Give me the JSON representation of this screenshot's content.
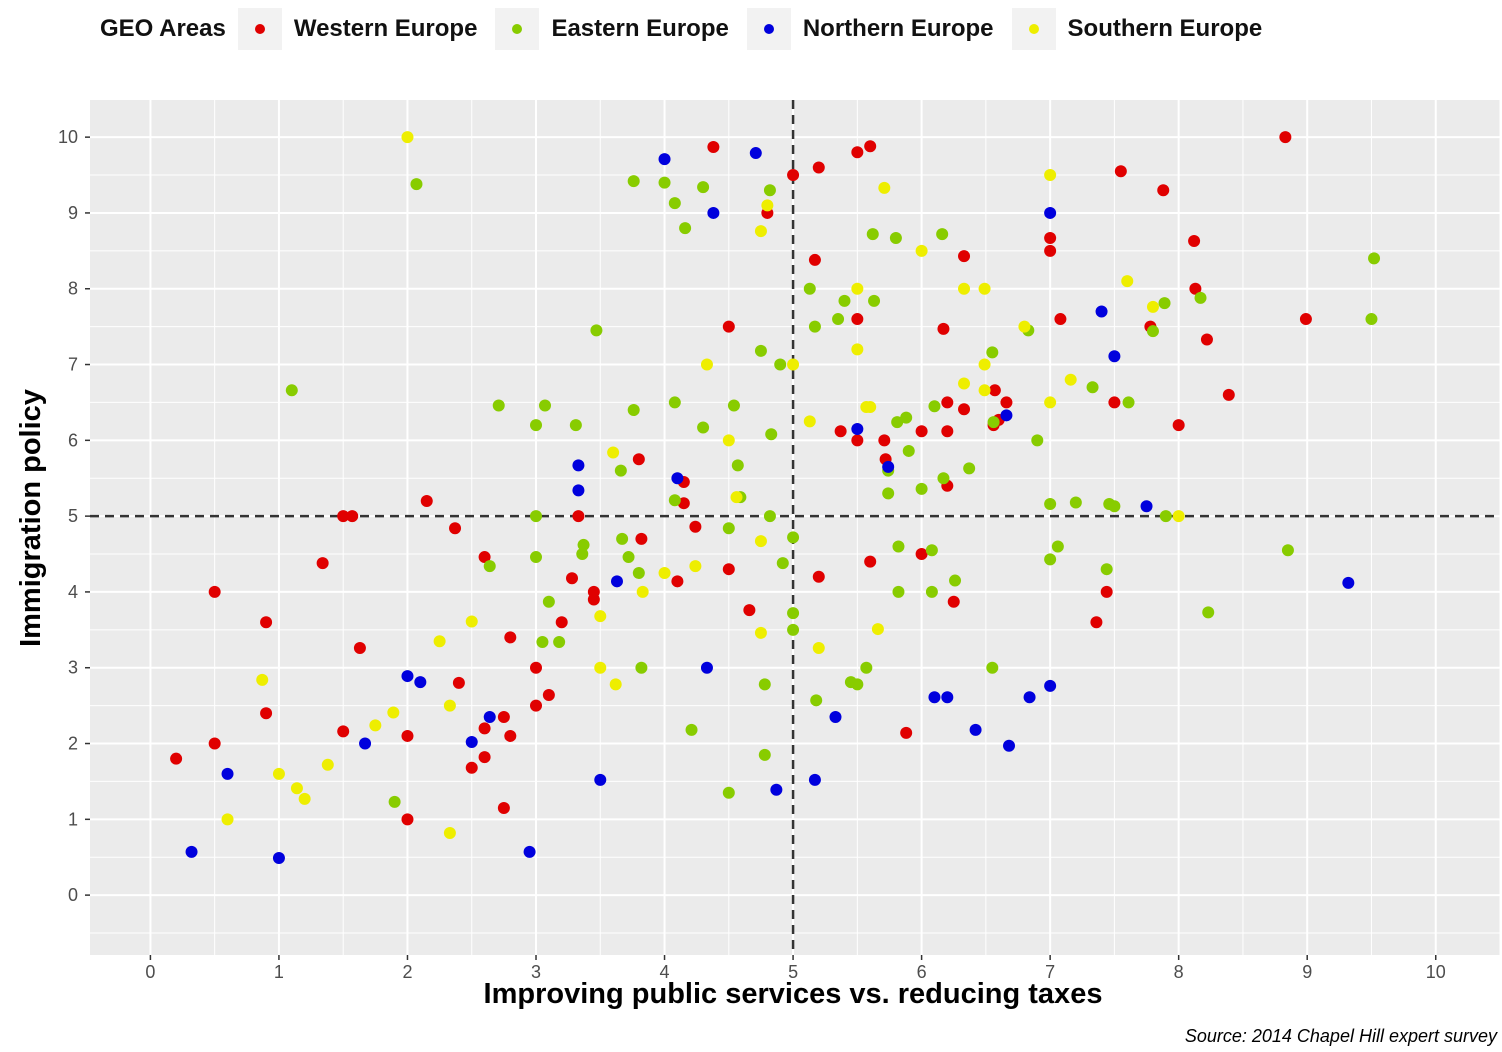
{
  "chart_data": {
    "type": "scatter",
    "title": "",
    "xlabel": "Improving public services vs. reducing taxes",
    "ylabel": "Immigration policy",
    "caption": "Source: 2014 Chapel Hill expert survey",
    "xlim": [
      -0.47,
      10.5
    ],
    "ylim": [
      -0.79,
      10.49
    ],
    "xticks": [
      0,
      1,
      2,
      3,
      4,
      5,
      6,
      7,
      8,
      9,
      10
    ],
    "yticks": [
      0,
      1,
      2,
      3,
      4,
      5,
      6,
      7,
      8,
      9,
      10
    ],
    "grid": true,
    "reference_lines": {
      "x": 5,
      "y": 5,
      "style": "dashed"
    },
    "legend": {
      "title": "GEO Areas",
      "placement": "top"
    },
    "series": [
      {
        "name": "Western Europe",
        "color": "#e00000",
        "points": [
          [
            0.2,
            1.8
          ],
          [
            0.5,
            4.0
          ],
          [
            0.5,
            2.0
          ],
          [
            0.9,
            3.6
          ],
          [
            0.9,
            2.4
          ],
          [
            1.34,
            4.38
          ],
          [
            1.5,
            5.0
          ],
          [
            1.57,
            5.0
          ],
          [
            1.63,
            3.26
          ],
          [
            1.5,
            2.16
          ],
          [
            2.15,
            5.2
          ],
          [
            2.0,
            2.1
          ],
          [
            2.0,
            1.0
          ],
          [
            2.37,
            4.84
          ],
          [
            2.4,
            2.8
          ],
          [
            2.6,
            4.46
          ],
          [
            2.6,
            2.2
          ],
          [
            2.6,
            1.82
          ],
          [
            2.5,
            1.68
          ],
          [
            2.75,
            2.35
          ],
          [
            2.75,
            1.15
          ],
          [
            2.8,
            3.4
          ],
          [
            2.8,
            2.1
          ],
          [
            3.0,
            3.0
          ],
          [
            3.0,
            2.5
          ],
          [
            3.1,
            2.64
          ],
          [
            3.2,
            3.6
          ],
          [
            3.28,
            4.18
          ],
          [
            3.33,
            5.0
          ],
          [
            3.45,
            4.0
          ],
          [
            3.45,
            3.9
          ],
          [
            3.8,
            5.75
          ],
          [
            3.82,
            4.7
          ],
          [
            4.15,
            5.45
          ],
          [
            4.15,
            5.17
          ],
          [
            4.1,
            4.14
          ],
          [
            4.24,
            4.86
          ],
          [
            4.5,
            4.3
          ],
          [
            4.5,
            7.5
          ],
          [
            4.38,
            9.87
          ],
          [
            4.8,
            9.0
          ],
          [
            4.66,
            3.76
          ],
          [
            5.0,
            9.5
          ],
          [
            5.2,
            9.6
          ],
          [
            5.17,
            8.38
          ],
          [
            5.2,
            4.2
          ],
          [
            5.5,
            9.8
          ],
          [
            5.6,
            9.88
          ],
          [
            5.5,
            7.6
          ],
          [
            5.37,
            6.12
          ],
          [
            5.5,
            6.0
          ],
          [
            5.6,
            4.4
          ],
          [
            5.71,
            6.0
          ],
          [
            5.72,
            5.75
          ],
          [
            5.88,
            2.14
          ],
          [
            6.0,
            6.12
          ],
          [
            6.17,
            7.47
          ],
          [
            6.2,
            6.5
          ],
          [
            6.2,
            6.12
          ],
          [
            6.2,
            5.4
          ],
          [
            6.0,
            4.5
          ],
          [
            6.33,
            8.43
          ],
          [
            6.33,
            6.41
          ],
          [
            6.25,
            3.87
          ],
          [
            6.57,
            6.66
          ],
          [
            6.56,
            6.2
          ],
          [
            6.6,
            6.27
          ],
          [
            6.66,
            6.5
          ],
          [
            7.0,
            8.67
          ],
          [
            7.0,
            8.5
          ],
          [
            7.08,
            7.6
          ],
          [
            7.55,
            9.55
          ],
          [
            7.88,
            9.3
          ],
          [
            7.5,
            6.5
          ],
          [
            7.78,
            7.5
          ],
          [
            7.44,
            4.0
          ],
          [
            7.36,
            3.6
          ],
          [
            8.12,
            8.63
          ],
          [
            8.13,
            8.0
          ],
          [
            8.22,
            7.33
          ],
          [
            8.0,
            6.2
          ],
          [
            8.39,
            6.6
          ],
          [
            8.83,
            10.0
          ],
          [
            8.99,
            7.6
          ]
        ]
      },
      {
        "name": "Eastern Europe",
        "color": "#88cc00",
        "points": [
          [
            1.1,
            6.66
          ],
          [
            2.07,
            9.38
          ],
          [
            1.9,
            1.23
          ],
          [
            2.64,
            4.34
          ],
          [
            2.71,
            6.46
          ],
          [
            3.0,
            6.2
          ],
          [
            3.07,
            6.46
          ],
          [
            3.0,
            5.0
          ],
          [
            3.0,
            4.46
          ],
          [
            3.05,
            3.34
          ],
          [
            3.18,
            3.34
          ],
          [
            3.1,
            3.87
          ],
          [
            3.31,
            6.2
          ],
          [
            3.37,
            4.62
          ],
          [
            3.36,
            4.5
          ],
          [
            3.47,
            7.45
          ],
          [
            3.66,
            5.6
          ],
          [
            3.67,
            4.7
          ],
          [
            3.72,
            4.46
          ],
          [
            3.76,
            6.4
          ],
          [
            3.76,
            9.42
          ],
          [
            3.8,
            4.25
          ],
          [
            3.82,
            3.0
          ],
          [
            4.0,
            9.4
          ],
          [
            4.08,
            9.13
          ],
          [
            4.16,
            8.8
          ],
          [
            4.3,
            9.34
          ],
          [
            4.08,
            6.5
          ],
          [
            4.08,
            5.21
          ],
          [
            4.3,
            6.17
          ],
          [
            4.5,
            4.84
          ],
          [
            4.5,
            1.35
          ],
          [
            4.21,
            2.18
          ],
          [
            4.54,
            6.46
          ],
          [
            4.57,
            5.67
          ],
          [
            4.59,
            5.25
          ],
          [
            4.75,
            7.18
          ],
          [
            4.82,
            9.3
          ],
          [
            4.83,
            6.08
          ],
          [
            4.82,
            5.0
          ],
          [
            4.78,
            2.78
          ],
          [
            4.78,
            1.85
          ],
          [
            4.9,
            7.0
          ],
          [
            4.92,
            4.38
          ],
          [
            5.0,
            4.72
          ],
          [
            5.0,
            3.72
          ],
          [
            5.0,
            3.5
          ],
          [
            5.13,
            8.0
          ],
          [
            5.17,
            7.5
          ],
          [
            5.18,
            2.57
          ],
          [
            5.35,
            7.6
          ],
          [
            5.4,
            7.84
          ],
          [
            5.45,
            2.81
          ],
          [
            5.5,
            2.78
          ],
          [
            5.57,
            3.0
          ],
          [
            5.62,
            8.72
          ],
          [
            5.63,
            7.84
          ],
          [
            5.74,
            5.3
          ],
          [
            5.74,
            5.6
          ],
          [
            5.8,
            8.67
          ],
          [
            5.81,
            6.24
          ],
          [
            5.88,
            6.3
          ],
          [
            5.82,
            4.6
          ],
          [
            5.82,
            4.0
          ],
          [
            5.9,
            5.86
          ],
          [
            6.0,
            5.36
          ],
          [
            6.1,
            6.45
          ],
          [
            6.08,
            4.55
          ],
          [
            6.08,
            4.0
          ],
          [
            6.16,
            8.72
          ],
          [
            6.17,
            5.5
          ],
          [
            6.26,
            4.15
          ],
          [
            6.37,
            5.63
          ],
          [
            6.55,
            7.16
          ],
          [
            6.56,
            6.24
          ],
          [
            6.55,
            3.0
          ],
          [
            6.83,
            7.45
          ],
          [
            6.9,
            6.0
          ],
          [
            7.0,
            5.16
          ],
          [
            7.0,
            4.43
          ],
          [
            7.06,
            4.6
          ],
          [
            7.2,
            5.18
          ],
          [
            7.33,
            6.7
          ],
          [
            7.44,
            4.3
          ],
          [
            7.46,
            5.16
          ],
          [
            7.5,
            5.13
          ],
          [
            7.61,
            6.5
          ],
          [
            7.8,
            7.44
          ],
          [
            7.89,
            7.81
          ],
          [
            7.9,
            5.0
          ],
          [
            8.17,
            7.88
          ],
          [
            8.23,
            3.73
          ],
          [
            8.85,
            4.55
          ],
          [
            9.5,
            7.6
          ],
          [
            9.52,
            8.4
          ]
        ]
      },
      {
        "name": "Northern Europe",
        "color": "#0000dd",
        "points": [
          [
            0.32,
            0.57
          ],
          [
            0.6,
            1.6
          ],
          [
            1.0,
            0.49
          ],
          [
            1.67,
            2.0
          ],
          [
            2.0,
            2.89
          ],
          [
            2.1,
            2.81
          ],
          [
            2.5,
            2.02
          ],
          [
            2.64,
            2.35
          ],
          [
            2.95,
            0.57
          ],
          [
            3.33,
            5.67
          ],
          [
            3.33,
            5.34
          ],
          [
            3.5,
            1.52
          ],
          [
            3.63,
            4.14
          ],
          [
            4.0,
            9.71
          ],
          [
            4.1,
            5.5
          ],
          [
            4.33,
            3.0
          ],
          [
            4.38,
            9.0
          ],
          [
            4.71,
            9.79
          ],
          [
            4.87,
            1.39
          ],
          [
            5.17,
            1.52
          ],
          [
            5.33,
            2.35
          ],
          [
            5.5,
            6.15
          ],
          [
            5.74,
            5.65
          ],
          [
            6.1,
            2.61
          ],
          [
            6.2,
            2.61
          ],
          [
            6.42,
            2.18
          ],
          [
            6.66,
            6.33
          ],
          [
            6.68,
            1.97
          ],
          [
            7.0,
            9.0
          ],
          [
            7.0,
            2.76
          ],
          [
            6.84,
            2.61
          ],
          [
            7.4,
            7.7
          ],
          [
            7.5,
            7.11
          ],
          [
            7.75,
            5.13
          ],
          [
            9.32,
            4.12
          ]
        ]
      },
      {
        "name": "Southern Europe",
        "color": "#eeee00",
        "points": [
          [
            2.0,
            10.0
          ],
          [
            0.6,
            1.0
          ],
          [
            0.87,
            2.84
          ],
          [
            1.0,
            1.6
          ],
          [
            1.14,
            1.41
          ],
          [
            1.2,
            1.27
          ],
          [
            1.38,
            1.72
          ],
          [
            1.75,
            2.24
          ],
          [
            1.89,
            2.41
          ],
          [
            2.25,
            3.35
          ],
          [
            2.33,
            2.5
          ],
          [
            2.33,
            0.82
          ],
          [
            2.5,
            3.61
          ],
          [
            3.5,
            3.68
          ],
          [
            3.5,
            3.0
          ],
          [
            3.6,
            5.84
          ],
          [
            3.62,
            2.78
          ],
          [
            3.83,
            4.0
          ],
          [
            4.0,
            4.25
          ],
          [
            4.24,
            4.34
          ],
          [
            4.33,
            7.0
          ],
          [
            4.5,
            6.0
          ],
          [
            4.56,
            5.25
          ],
          [
            4.75,
            8.76
          ],
          [
            4.8,
            9.1
          ],
          [
            4.75,
            4.67
          ],
          [
            4.75,
            3.46
          ],
          [
            5.0,
            7.0
          ],
          [
            5.13,
            6.25
          ],
          [
            5.2,
            3.26
          ],
          [
            5.5,
            8.0
          ],
          [
            5.5,
            7.2
          ],
          [
            5.57,
            6.44
          ],
          [
            5.6,
            6.44
          ],
          [
            5.66,
            3.51
          ],
          [
            5.71,
            9.33
          ],
          [
            6.0,
            8.5
          ],
          [
            6.33,
            8.0
          ],
          [
            6.33,
            6.75
          ],
          [
            6.49,
            8.0
          ],
          [
            6.49,
            7.0
          ],
          [
            6.49,
            6.66
          ],
          [
            6.8,
            7.5
          ],
          [
            7.0,
            9.5
          ],
          [
            7.0,
            6.5
          ],
          [
            7.16,
            6.8
          ],
          [
            7.6,
            8.1
          ],
          [
            7.8,
            7.76
          ],
          [
            8.0,
            5.0
          ]
        ]
      }
    ]
  }
}
